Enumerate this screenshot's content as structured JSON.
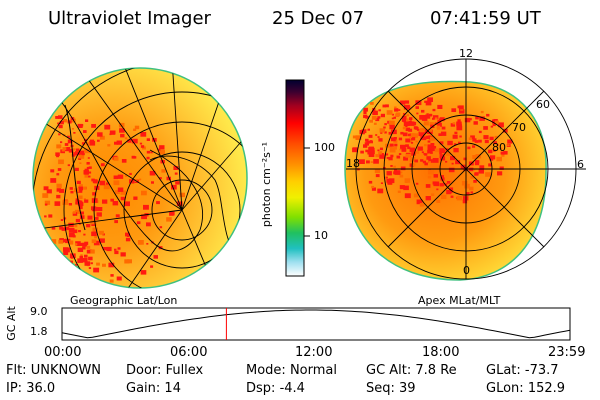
{
  "header": {
    "instrument": "Ultraviolet Imager",
    "date": "25 Dec 07",
    "time": "07:41:59 UT"
  },
  "left_panel": {
    "caption": "Geographic Lat/Lon"
  },
  "right_panel": {
    "caption": "Apex MLat/MLT",
    "mlt_labels": [
      "12",
      "6",
      "0",
      "18"
    ],
    "lat_labels": [
      "60",
      "70",
      "80"
    ]
  },
  "colorbar": {
    "unit_label": "photon cm⁻²s⁻¹",
    "ticks": [
      "100",
      "10"
    ]
  },
  "altitude_plot": {
    "axis_label": "GC Alt",
    "y_ticks": [
      "9.0",
      "1.8"
    ],
    "x_ticks": [
      "00:00",
      "06:00",
      "12:00",
      "18:00",
      "23:59"
    ],
    "current_time_fraction": 0.3236
  },
  "status": {
    "row1": [
      {
        "label": "Flt:",
        "value": "UNKNOWN"
      },
      {
        "label": "Door:",
        "value": "Fullex"
      },
      {
        "label": "Mode:",
        "value": "Normal"
      },
      {
        "label": "GC Alt:",
        "value": "7.8 Re"
      },
      {
        "label": "GLat:",
        "value": "-73.7"
      }
    ],
    "row2": [
      {
        "label": "IP:",
        "value": "36.0"
      },
      {
        "label": "Gain:",
        "value": "14"
      },
      {
        "label": "Dsp:",
        "value": "-4.4"
      },
      {
        "label": "Seq:",
        "value": "39"
      },
      {
        "label": "GLon:",
        "value": "152.9"
      }
    ]
  },
  "colors": {
    "background": "#ffffff",
    "marker": "#ff0000",
    "grid": "#000000"
  }
}
